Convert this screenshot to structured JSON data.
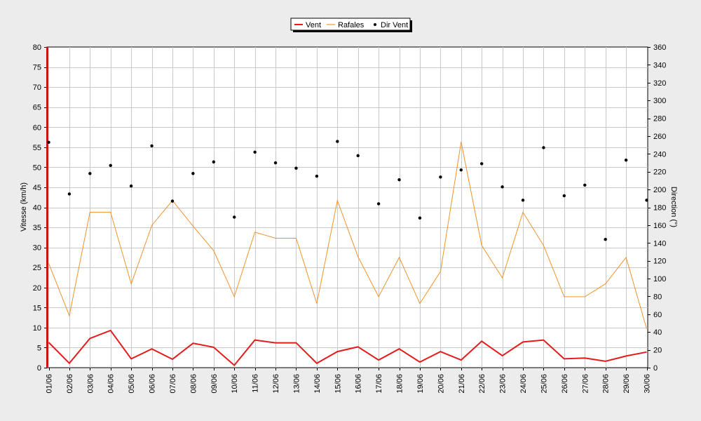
{
  "chart_data": {
    "type": "line",
    "categories": [
      "01/06",
      "02/06",
      "03/06",
      "04/06",
      "05/06",
      "06/06",
      "07/06",
      "08/06",
      "09/06",
      "10/06",
      "11/06",
      "12/06",
      "13/06",
      "14/06",
      "15/06",
      "16/06",
      "17/06",
      "18/06",
      "19/06",
      "20/06",
      "21/06",
      "22/06",
      "23/06",
      "24/06",
      "25/06",
      "26/06",
      "27/06",
      "28/06",
      "29/06",
      "30/06"
    ],
    "ylabel": "Vitesse (km/h)",
    "y2label": "Direction (°)",
    "ylim": [
      0,
      80
    ],
    "y2lim": [
      0,
      360
    ],
    "yticks": [
      0,
      5,
      10,
      15,
      20,
      25,
      30,
      35,
      40,
      45,
      50,
      55,
      60,
      65,
      70,
      75,
      80
    ],
    "y2ticks": [
      0,
      20,
      40,
      60,
      80,
      100,
      120,
      140,
      160,
      180,
      200,
      220,
      240,
      260,
      280,
      300,
      320,
      340,
      360
    ],
    "grid": true,
    "legend_position": "top-center",
    "series": [
      {
        "name": "Vent",
        "color": "#e41b1b",
        "axis": "left",
        "style": "line",
        "values": [
          6.3,
          1.1,
          7.3,
          9.3,
          2.2,
          4.7,
          2.1,
          6.1,
          5.1,
          0.6,
          6.9,
          6.2,
          6.2,
          1.1,
          4.0,
          5.2,
          1.9,
          4.7,
          1.4,
          4.0,
          1.9,
          6.6,
          3.0,
          6.4,
          6.9,
          2.2,
          2.4,
          1.6,
          2.9,
          3.9
        ]
      },
      {
        "name": "Rafales",
        "color": "#f0932b",
        "axis": "left",
        "style": "line",
        "values": [
          26.0,
          13.0,
          38.8,
          38.8,
          20.9,
          35.5,
          41.7,
          35.3,
          29.2,
          17.7,
          33.8,
          32.3,
          32.3,
          16.0,
          41.7,
          27.7,
          17.7,
          27.5,
          16.0,
          24.0,
          56.3,
          30.5,
          22.4,
          38.8,
          30.5,
          17.7,
          17.7,
          20.9,
          27.5,
          9.7
        ]
      },
      {
        "name": "Dir Vent",
        "color": "#000000",
        "axis": "right",
        "style": "scatter",
        "values": [
          253,
          195,
          218,
          227,
          204,
          249,
          187,
          218,
          231,
          169,
          242,
          230,
          224,
          215,
          254,
          238,
          184,
          211,
          168,
          214,
          222,
          229,
          203,
          188,
          247,
          193,
          205,
          144,
          233,
          188
        ]
      }
    ]
  }
}
